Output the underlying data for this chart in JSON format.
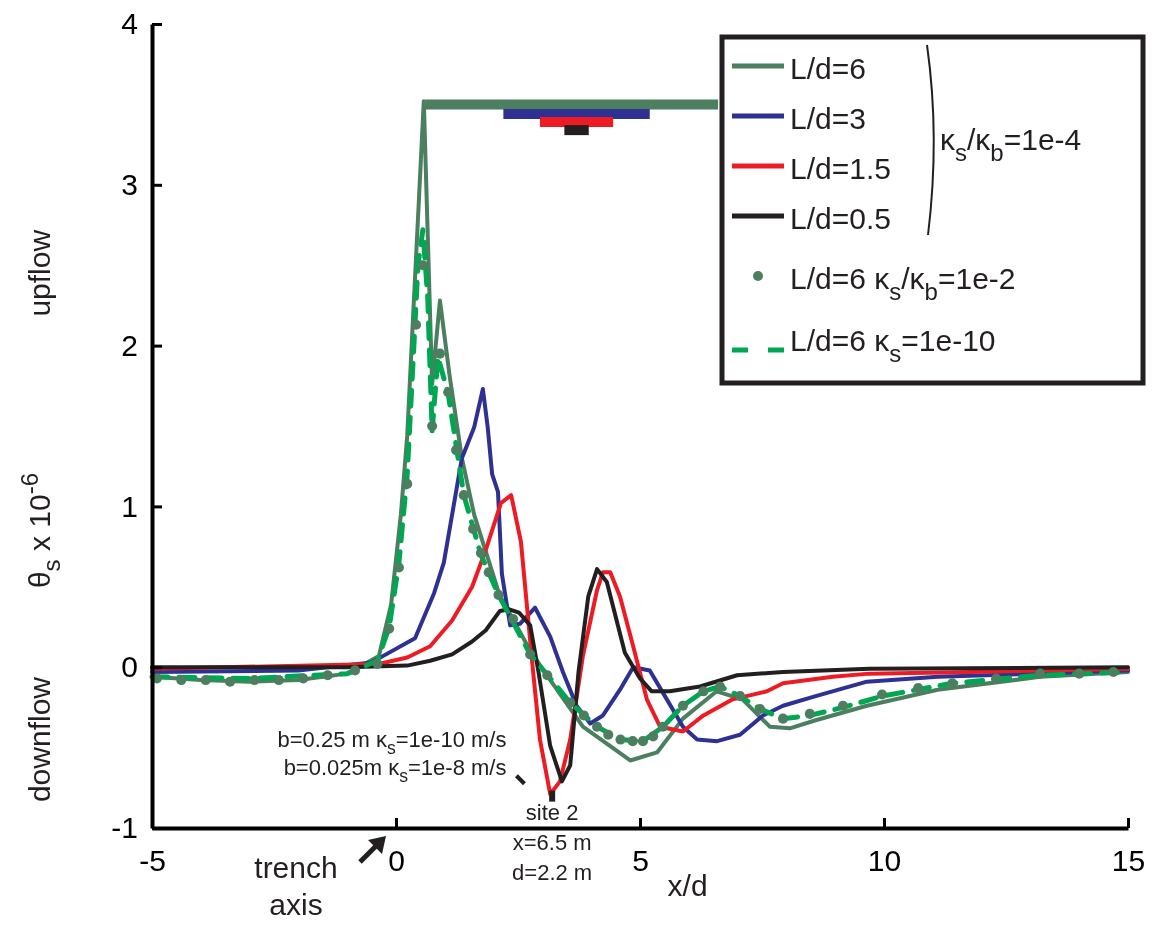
{
  "chart_data": {
    "type": "line",
    "xlabel": "x/d",
    "ylabel": "θ$_{s}$ x 10$^{-6}$",
    "legend_title": "κ$_{s}$/κ$_{b}$=1e-4",
    "legend": "top right",
    "grid": false,
    "xlim": [
      -5,
      15
    ],
    "xticks": [
      -5,
      0,
      5,
      10,
      15
    ],
    "ylim": [
      -1,
      4
    ],
    "yticks": [
      -1,
      0,
      1,
      2,
      3,
      4
    ],
    "series": [
      {
        "name": "L/d=6",
        "color": "#4b7f5f",
        "x": [
          -5,
          -4,
          -3,
          -2,
          -1,
          -0.35,
          -0.1,
          0.1,
          0.23,
          0.35,
          0.47,
          0.57,
          0.74,
          0.9,
          1.1,
          1.35,
          1.6,
          1.85,
          2.13,
          2.23,
          2.72,
          3.0,
          3.83,
          4.8,
          5.35,
          5.88,
          6.57,
          7.1,
          7.66,
          8.07,
          8.6,
          9.65,
          11.1,
          13.2,
          15
        ],
        "values": [
          -0.06,
          -0.08,
          -0.09,
          -0.08,
          -0.04,
          0.07,
          0.39,
          0.95,
          1.44,
          2.18,
          2.91,
          3.52,
          1.76,
          2.28,
          1.81,
          1.3,
          0.95,
          0.71,
          0.44,
          0.39,
          0.12,
          -0.01,
          -0.37,
          -0.58,
          -0.53,
          -0.32,
          -0.15,
          -0.2,
          -0.37,
          -0.38,
          -0.33,
          -0.24,
          -0.14,
          -0.06,
          -0.03
        ]
      },
      {
        "name": "L/d=3",
        "color": "#2e3192",
        "x": [
          -5,
          -2,
          -0.5,
          0.39,
          0.78,
          0.98,
          1.35,
          1.6,
          1.78,
          1.88,
          1.97,
          2.09,
          2.17,
          2.27,
          2.34,
          2.54,
          2.85,
          3.16,
          3.42,
          3.7,
          3.98,
          4.24,
          4.59,
          4.86,
          5.2,
          5.55,
          5.88,
          6.17,
          6.58,
          7.05,
          7.52,
          7.93,
          8.6,
          9.65,
          11.1,
          15
        ],
        "values": [
          -0.03,
          -0.02,
          0.03,
          0.18,
          0.46,
          0.65,
          1.3,
          1.49,
          1.73,
          1.49,
          1.2,
          1.09,
          0.58,
          0.39,
          0.26,
          0.27,
          0.37,
          0.19,
          -0.03,
          -0.24,
          -0.35,
          -0.3,
          -0.14,
          0.0,
          -0.02,
          -0.2,
          -0.37,
          -0.45,
          -0.46,
          -0.42,
          -0.3,
          -0.24,
          -0.18,
          -0.09,
          -0.06,
          -0.02
        ]
      },
      {
        "name": "L/d=1.5",
        "color": "#ed1c24",
        "x": [
          -5,
          -0.35,
          0.23,
          0.7,
          1.15,
          1.56,
          1.84,
          2.15,
          2.36,
          2.56,
          2.81,
          2.95,
          3.16,
          3.36,
          3.57,
          3.83,
          4.12,
          4.24,
          4.39,
          4.59,
          4.86,
          5.14,
          5.41,
          5.88,
          6.3,
          6.9,
          7.6,
          7.93,
          8.95,
          9.7,
          11.8,
          15
        ],
        "values": [
          -0.01,
          0.02,
          0.06,
          0.13,
          0.29,
          0.5,
          0.73,
          1.02,
          1.07,
          0.78,
          -0.03,
          -0.45,
          -0.79,
          -0.71,
          -0.45,
          0.07,
          0.48,
          0.59,
          0.59,
          0.44,
          0.13,
          -0.2,
          -0.37,
          -0.4,
          -0.3,
          -0.2,
          -0.15,
          -0.1,
          -0.06,
          -0.04,
          -0.03,
          -0.01
        ]
      },
      {
        "name": "L/d=0.5",
        "color": "#231f20",
        "x": [
          -5,
          -1,
          0.23,
          0.7,
          1.15,
          1.56,
          1.84,
          2.13,
          2.32,
          2.52,
          2.75,
          2.92,
          3.16,
          3.4,
          3.57,
          3.74,
          3.94,
          4.12,
          4.32,
          4.69,
          5.0,
          5.24,
          5.61,
          6.23,
          6.99,
          7.93,
          9.7,
          15
        ],
        "values": [
          0.0,
          0.0,
          0.01,
          0.04,
          0.08,
          0.16,
          0.23,
          0.35,
          0.36,
          0.34,
          0.26,
          -0.03,
          -0.49,
          -0.71,
          -0.61,
          -0.03,
          0.44,
          0.61,
          0.53,
          0.09,
          -0.07,
          -0.15,
          -0.15,
          -0.12,
          -0.05,
          -0.03,
          -0.01,
          0.0
        ]
      },
      {
        "name": "L/d=6 κ$_{s}$/κ$_{b}$=1e-2",
        "type": "scatter",
        "marker": "circle",
        "color": "#4b7f5f",
        "x": [
          -4.9,
          -4.4,
          -3.9,
          -3.4,
          -2.9,
          -2.4,
          -1.9,
          -1.4,
          -0.84,
          -0.38,
          -0.14,
          0.06,
          0.23,
          0.41,
          0.55,
          0.74,
          0.9,
          1.07,
          1.23,
          1.39,
          1.58,
          1.74,
          1.9,
          2.1,
          2.4,
          2.75,
          3.1,
          3.57,
          3.85,
          4.12,
          4.35,
          4.6,
          4.85,
          5.06,
          5.27,
          5.47,
          5.88,
          6.3,
          6.64,
          7.05,
          7.46,
          7.93,
          8.48,
          9.16,
          9.96,
          10.7,
          11.4,
          12.3,
          13.2,
          14.0,
          14.7
        ],
        "values": [
          -0.07,
          -0.08,
          -0.08,
          -0.09,
          -0.08,
          -0.08,
          -0.07,
          -0.05,
          -0.02,
          0.02,
          0.24,
          0.62,
          1.14,
          2.13,
          2.5,
          1.5,
          1.95,
          1.71,
          1.35,
          1.07,
          0.86,
          0.71,
          0.59,
          0.45,
          0.3,
          0.08,
          -0.05,
          -0.22,
          -0.3,
          -0.37,
          -0.42,
          -0.45,
          -0.46,
          -0.46,
          -0.43,
          -0.37,
          -0.24,
          -0.15,
          -0.12,
          -0.18,
          -0.26,
          -0.32,
          -0.29,
          -0.24,
          -0.17,
          -0.13,
          -0.1,
          -0.07,
          -0.04,
          -0.04,
          -0.03
        ]
      },
      {
        "name": "L/d=6 κ$_{s}$=1e-10",
        "line_style": "dashed",
        "color": "#00a651",
        "x": [
          -5,
          -3,
          -1,
          -0.38,
          -0.14,
          0.06,
          0.23,
          0.35,
          0.45,
          0.55,
          0.65,
          0.74,
          0.86,
          1.07,
          1.39,
          1.74,
          2.1,
          2.75,
          3.57,
          4.12,
          4.6,
          5.06,
          5.47,
          5.88,
          6.3,
          6.64,
          7.05,
          7.46,
          7.93,
          8.48,
          9.16,
          9.96,
          11.4,
          13.2,
          15
        ],
        "values": [
          -0.06,
          -0.07,
          -0.04,
          0.04,
          0.25,
          0.65,
          1.2,
          1.9,
          2.5,
          2.72,
          2.3,
          1.47,
          1.93,
          1.7,
          1.07,
          0.7,
          0.45,
          0.08,
          -0.22,
          -0.37,
          -0.45,
          -0.46,
          -0.37,
          -0.24,
          -0.15,
          -0.12,
          -0.18,
          -0.26,
          -0.32,
          -0.3,
          -0.25,
          -0.18,
          -0.1,
          -0.05,
          -0.03
        ]
      },
      {
        "color": "#4b7f5f",
        "x": [
          0.6,
          6.6
        ],
        "values": [
          3.5,
          3.5
        ]
      },
      {
        "color": "#2e3192",
        "x": [
          2.2,
          5.2
        ],
        "values": [
          3.44,
          3.44
        ]
      },
      {
        "color": "#ed1c24",
        "x": [
          2.95,
          4.45
        ],
        "values": [
          3.39,
          3.39
        ]
      },
      {
        "color": "#231f20",
        "x": [
          3.45,
          3.95
        ],
        "values": [
          3.34,
          3.34
        ]
      }
    ],
    "annotations": [
      "upflow",
      "downflow",
      "b=0.25 m κ$_{s}$=1e-10 m/s\nb=0.025m κ$_{s}$=1e-8 m/s",
      "trench\naxis",
      {
        "text": "site 2\nx=6.5 m\nd=2.2 m",
        "x": 3.2,
        "y": -0.78
      }
    ]
  }
}
